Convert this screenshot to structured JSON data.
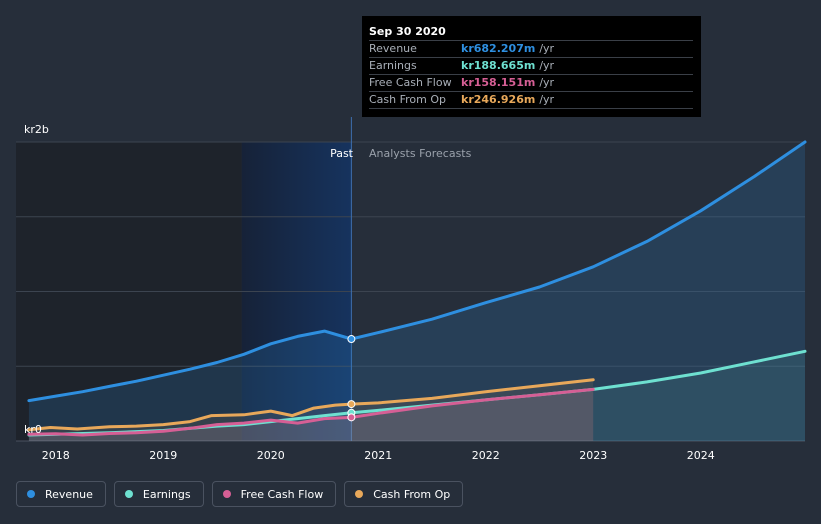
{
  "colors": {
    "revenue": "#2e8fe0",
    "earnings": "#6ee0d0",
    "free_cash_flow": "#d65f95",
    "cash_from_op": "#e8a85a",
    "background": "#262e3a"
  },
  "tooltip": {
    "date": "Sep 30 2020",
    "rows": [
      {
        "name": "Revenue",
        "value": "kr682.207m",
        "unit": "/yr",
        "color": "#2e8fe0"
      },
      {
        "name": "Earnings",
        "value": "kr188.665m",
        "unit": "/yr",
        "color": "#6ee0d0"
      },
      {
        "name": "Free Cash Flow",
        "value": "kr158.151m",
        "unit": "/yr",
        "color": "#d65f95"
      },
      {
        "name": "Cash From Op",
        "value": "kr246.926m",
        "unit": "/yr",
        "color": "#e8a85a"
      }
    ]
  },
  "legend": [
    {
      "label": "Revenue",
      "icon": "revenue-dot-icon",
      "color": "#2e8fe0"
    },
    {
      "label": "Earnings",
      "icon": "earnings-dot-icon",
      "color": "#6ee0d0"
    },
    {
      "label": "Free Cash Flow",
      "icon": "free-cash-flow-dot-icon",
      "color": "#d65f95"
    },
    {
      "label": "Cash From Op",
      "icon": "cash-from-op-dot-icon",
      "color": "#e8a85a"
    }
  ],
  "chart_data": {
    "type": "line",
    "title": "",
    "y_label_top": "kr2b",
    "y_label_bottom": "kr0",
    "ylim": [
      0,
      2000
    ],
    "xlim": [
      2017.63,
      2024.97
    ],
    "x_ticks": [
      "2018",
      "2019",
      "2020",
      "2021",
      "2022",
      "2023",
      "2024"
    ],
    "past_label": "Past",
    "forecast_label": "Analysts Forecasts",
    "divider_x": 2020.75,
    "series": [
      {
        "name": "Revenue",
        "color": "#2e8fe0",
        "x": [
          2017.75,
          2018.0,
          2018.25,
          2018.5,
          2018.75,
          2019.0,
          2019.25,
          2019.5,
          2019.75,
          2020.0,
          2020.25,
          2020.5,
          2020.75,
          2021.0,
          2021.5,
          2022.0,
          2022.5,
          2023.0,
          2023.5,
          2024.0,
          2024.5,
          2024.97
        ],
        "y": [
          270,
          300,
          330,
          365,
          400,
          440,
          480,
          525,
          580,
          650,
          700,
          735,
          682,
          725,
          815,
          925,
          1030,
          1165,
          1335,
          1540,
          1770,
          2000
        ]
      },
      {
        "name": "Earnings",
        "color": "#6ee0d0",
        "x": [
          2017.75,
          2018.0,
          2018.5,
          2019.0,
          2019.5,
          2019.75,
          2020.0,
          2020.25,
          2020.5,
          2020.75,
          2021.0,
          2021.5,
          2022.0,
          2022.5,
          2023.0,
          2023.5,
          2024.0,
          2024.5,
          2024.97
        ],
        "y": [
          40,
          45,
          55,
          70,
          100,
          110,
          130,
          150,
          170,
          188.665,
          205,
          240,
          275,
          310,
          345,
          395,
          455,
          530,
          600
        ]
      },
      {
        "name": "Free Cash Flow",
        "color": "#d65f95",
        "x": [
          2017.75,
          2018.0,
          2018.25,
          2018.5,
          2018.75,
          2019.0,
          2019.25,
          2019.5,
          2019.75,
          2020.0,
          2020.25,
          2020.5,
          2020.75,
          2021.0,
          2021.5,
          2022.0,
          2022.5,
          2023.0
        ],
        "y": [
          45,
          48,
          40,
          50,
          55,
          65,
          85,
          110,
          120,
          140,
          120,
          150,
          158.151,
          185,
          235,
          275,
          310,
          345
        ]
      },
      {
        "name": "Cash From Op",
        "color": "#e8a85a",
        "x": [
          2017.75,
          2017.95,
          2018.2,
          2018.5,
          2018.75,
          2019.0,
          2019.25,
          2019.45,
          2019.75,
          2020.0,
          2020.2,
          2020.4,
          2020.6,
          2020.75,
          2021.0,
          2021.5,
          2022.0,
          2022.5,
          2023.0
        ],
        "y": [
          75,
          90,
          80,
          95,
          100,
          110,
          130,
          170,
          175,
          200,
          170,
          220,
          240,
          246.926,
          255,
          285,
          330,
          370,
          410
        ]
      }
    ]
  }
}
